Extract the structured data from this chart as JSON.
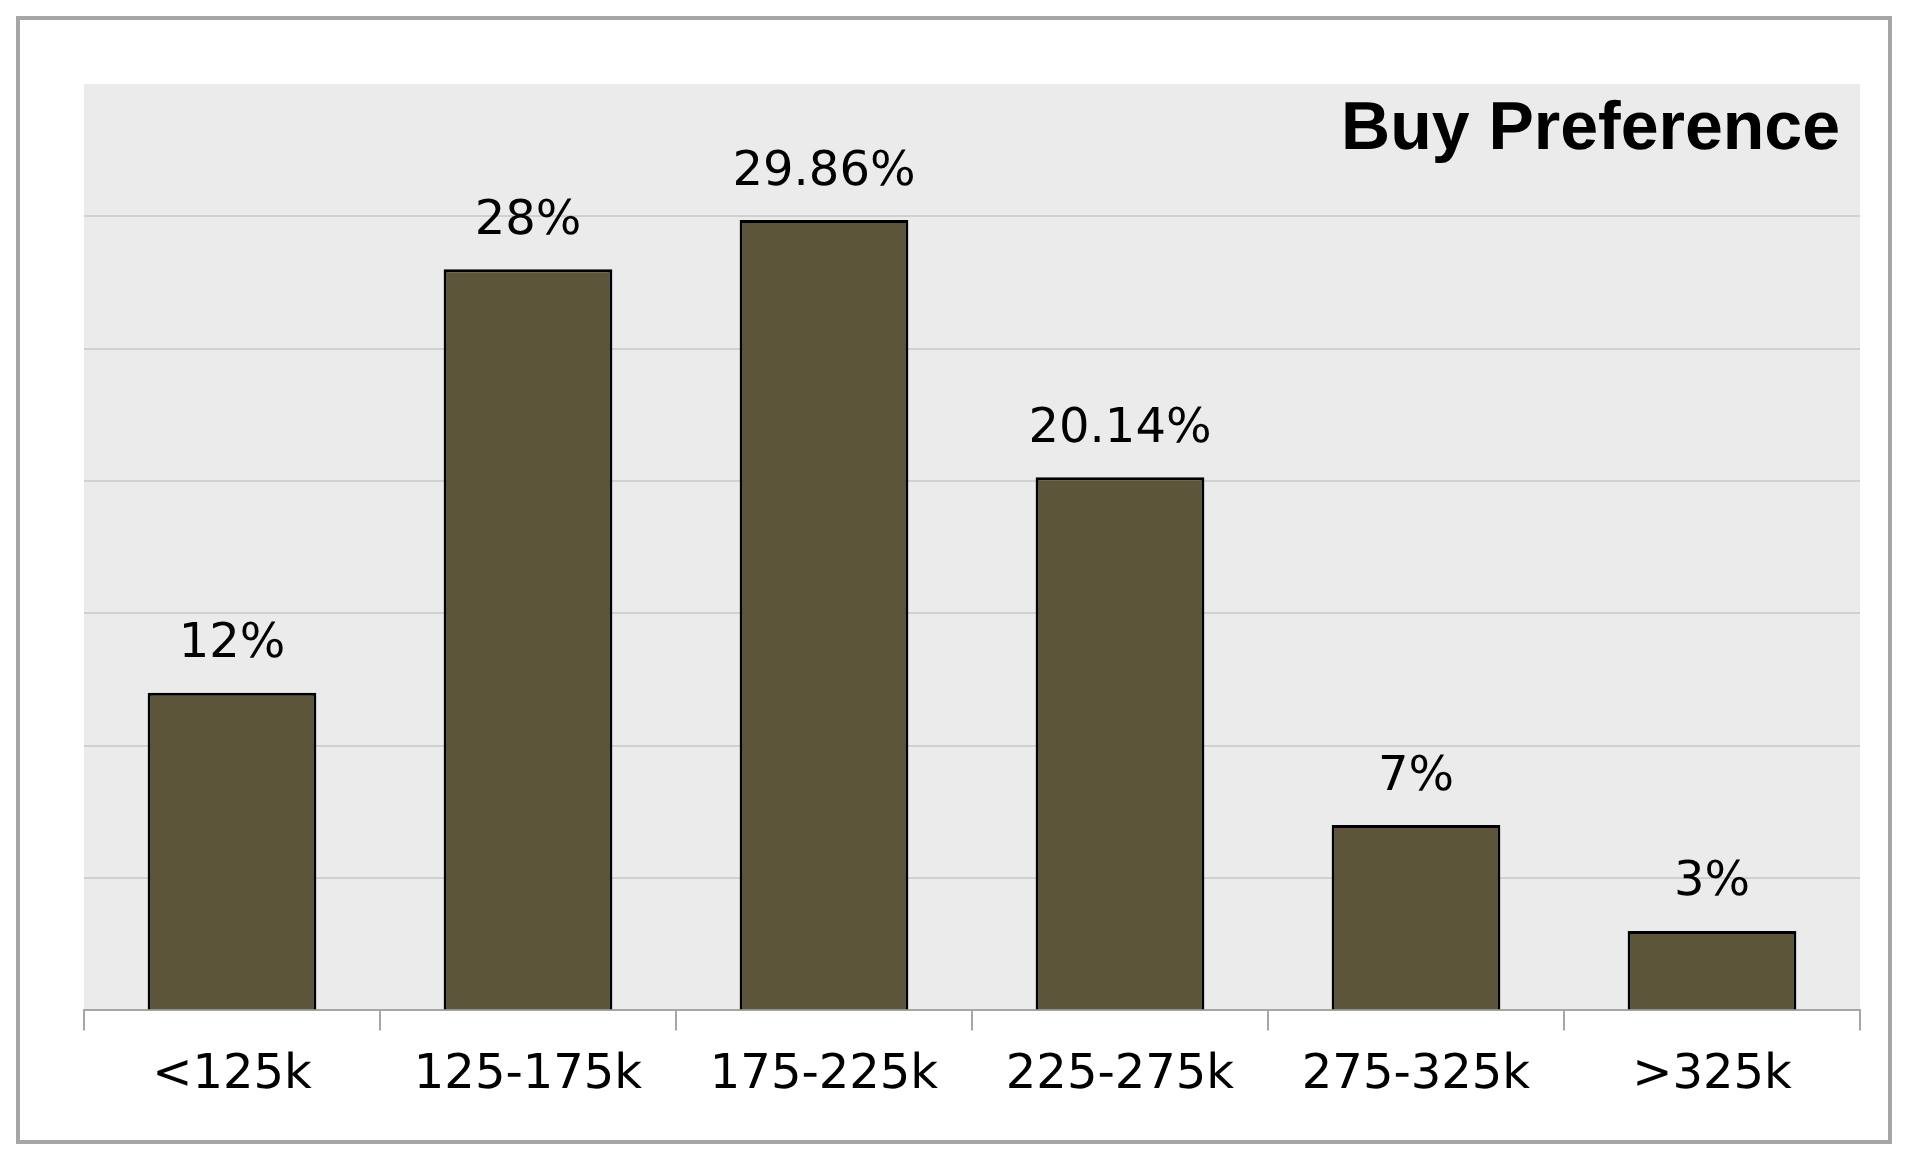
{
  "chart_data": {
    "type": "bar",
    "title": "Buy Preference",
    "categories": [
      "<125k",
      "125-175k",
      "175-225k",
      "225-275k",
      "275-325k",
      ">325k"
    ],
    "values": [
      12,
      28,
      29.86,
      20.14,
      7,
      3
    ],
    "value_labels": [
      "12%",
      "28%",
      "29.86%",
      "20.14%",
      "7%",
      "3%"
    ],
    "color": "#5c5539",
    "ylim": [
      0,
      35
    ],
    "yticks": [
      {
        "value": 0,
        "label": null
      },
      {
        "value": 5,
        "label": null
      },
      {
        "value": 10,
        "label": null
      },
      {
        "value": 15,
        "label": null
      },
      {
        "value": 20,
        "label": null
      },
      {
        "value": 25,
        "label": null
      },
      {
        "value": 30,
        "label": null
      }
    ],
    "grid": "y",
    "tick_labels": "x",
    "legend": false
  }
}
